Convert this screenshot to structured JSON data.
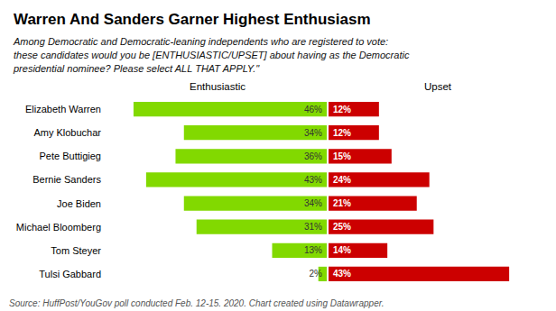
{
  "chart_data": {
    "type": "bar",
    "orientation": "horizontal",
    "title": "Warren And Sanders Garner Highest Enthusiasm",
    "subtitle": "Among Democratic and Democratic-leaning independents who are registered to vote:\nthese candidates would you be [ENTHUSIASTIC/UPSET] about having as the Democratic\npresidential nominee? Please select ALL THAT APPLY.\"",
    "annotations": [
      "Source: HuffPost/YouGov poll conducted Feb. 12-15. 2020. Chart created using Datawrapper."
    ],
    "categories": [
      "Elizabeth Warren",
      "Amy Klobuchar",
      "Pete Buttigieg",
      "Bernie Sanders",
      "Joe Biden",
      "Michael Bloomberg",
      "Tom Steyer",
      "Tulsi Gabbard"
    ],
    "series": [
      {
        "name": "Enthusiastic",
        "color": "#82D900",
        "values": [
          46,
          34,
          36,
          43,
          34,
          31,
          13,
          2
        ],
        "value_labels": [
          "46%",
          "34%",
          "36%",
          "43%",
          "34%",
          "31%",
          "13%",
          "2%"
        ]
      },
      {
        "name": "Upset",
        "color": "#CC0000",
        "values": [
          12,
          12,
          15,
          24,
          21,
          25,
          14,
          43
        ],
        "value_labels": [
          "12%",
          "12%",
          "15%",
          "24%",
          "21%",
          "25%",
          "14%",
          "43%"
        ]
      }
    ],
    "xlim": [
      0,
      52
    ],
    "data_labels": true,
    "tick_labels": "y",
    "grid": false
  }
}
